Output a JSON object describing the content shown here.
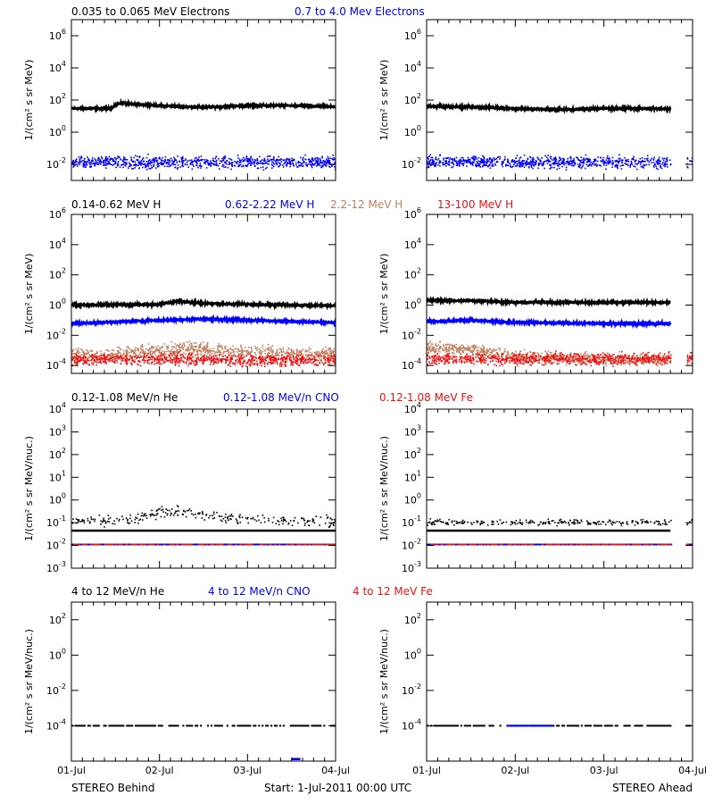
{
  "colors": {
    "black": "#000000",
    "blue": "#0000ff",
    "tan": "#c08060",
    "red": "#ee1111"
  },
  "x_ticks": [
    "01-Jul",
    "02-Jul",
    "03-Jul",
    "04-Jul"
  ],
  "footer": {
    "left": "STEREO Behind",
    "center": "Start:   1-Jul-2011 00:00 UTC",
    "right": "STEREO Ahead"
  },
  "chart_data": [
    {
      "type": "scatter",
      "id": "electrons",
      "titles": [
        {
          "text": "0.035 to 0.065 MeV Electrons",
          "color": "black"
        },
        {
          "text": "0.7 to 4.0 Mev Electrons",
          "color": "blue"
        }
      ],
      "ylabel": "1/(cm² s sr MeV)",
      "y_scale": "log",
      "ylim": [
        0.001,
        10000000
      ],
      "y_ticks": [
        {
          "base": "10",
          "exp": "-2"
        },
        {
          "base": "10",
          "exp": "0"
        },
        {
          "base": "10",
          "exp": "2"
        },
        {
          "base": "10",
          "exp": "4"
        },
        {
          "base": "10",
          "exp": "6"
        }
      ],
      "x_range_days": [
        0,
        3
      ],
      "panels": [
        {
          "name": "STEREO Behind",
          "series": [
            {
              "color": "black",
              "x": [
                0,
                0.25,
                0.45,
                0.55,
                0.7,
                1,
                1.5,
                2,
                2.5,
                3
              ],
              "y": [
                30,
                30,
                30,
                65,
                55,
                45,
                35,
                45,
                45,
                38
              ],
              "noise": 0.04,
              "style": "line"
            },
            {
              "color": "blue",
              "x": [
                0,
                1,
                2,
                3
              ],
              "y": [
                0.015,
                0.015,
                0.015,
                0.015
              ],
              "noise": 0.3,
              "style": "dots"
            }
          ]
        },
        {
          "name": "STEREO Ahead",
          "series": [
            {
              "color": "black",
              "x": [
                0,
                0.5,
                1,
                1.5,
                2,
                2.5,
                2.75
              ],
              "y": [
                40,
                38,
                30,
                25,
                30,
                30,
                28
              ],
              "noise": 0.05,
              "style": "line",
              "gap": [
                2.75,
                2.92
              ]
            },
            {
              "color": "blue",
              "x": [
                0,
                1,
                2,
                3
              ],
              "y": [
                0.015,
                0.015,
                0.015,
                0.015
              ],
              "noise": 0.3,
              "style": "dots",
              "gap": [
                2.75,
                2.92
              ]
            }
          ]
        }
      ]
    },
    {
      "type": "scatter",
      "id": "protons",
      "titles": [
        {
          "text": "0.14-0.62 MeV H",
          "color": "black"
        },
        {
          "text": "0.62-2.22 MeV H",
          "color": "blue"
        },
        {
          "text": "2.2-12 MeV H",
          "color": "tan"
        },
        {
          "text": "13-100 MeV H",
          "color": "red"
        }
      ],
      "ylabel": "1/(cm² s sr MeV)",
      "y_scale": "log",
      "ylim": [
        3e-05,
        1000000
      ],
      "y_ticks": [
        {
          "base": "10",
          "exp": "-4"
        },
        {
          "base": "10",
          "exp": "-2"
        },
        {
          "base": "10",
          "exp": "0"
        },
        {
          "base": "10",
          "exp": "2"
        },
        {
          "base": "10",
          "exp": "4"
        },
        {
          "base": "10",
          "exp": "6"
        }
      ],
      "x_range_days": [
        0,
        3
      ],
      "panels": [
        {
          "name": "STEREO Behind",
          "series": [
            {
              "color": "black",
              "x": [
                0,
                1,
                1.2,
                1.5,
                2,
                3
              ],
              "y": [
                1,
                1.1,
                1.8,
                1.3,
                1.1,
                0.9
              ],
              "noise": 0.05,
              "style": "line"
            },
            {
              "color": "blue",
              "x": [
                0,
                1,
                1.5,
                2,
                3
              ],
              "y": [
                0.06,
                0.1,
                0.12,
                0.1,
                0.07
              ],
              "noise": 0.05,
              "style": "line"
            },
            {
              "color": "tan",
              "x": [
                0,
                0.5,
                1,
                1.3,
                2,
                3
              ],
              "y": [
                0.0006,
                0.0005,
                0.0012,
                0.0015,
                0.0008,
                0.0006
              ],
              "noise": 0.35,
              "style": "dots"
            },
            {
              "color": "red",
              "x": [
                0,
                1,
                2,
                3
              ],
              "y": [
                0.00025,
                0.0003,
                0.00025,
                0.00025
              ],
              "noise": 0.3,
              "style": "dots"
            }
          ]
        },
        {
          "name": "STEREO Ahead",
          "series": [
            {
              "color": "black",
              "x": [
                0,
                0.5,
                1,
                2,
                2.75
              ],
              "y": [
                2,
                2,
                1.5,
                1.5,
                1.5
              ],
              "noise": 0.05,
              "style": "line",
              "gap": [
                2.75,
                2.92
              ]
            },
            {
              "color": "blue",
              "x": [
                0,
                0.5,
                1,
                2,
                2.75
              ],
              "y": [
                0.08,
                0.1,
                0.07,
                0.06,
                0.06
              ],
              "noise": 0.05,
              "style": "line",
              "gap": [
                2.75,
                2.92
              ]
            },
            {
              "color": "tan",
              "x": [
                0,
                0.3,
                0.7,
                1.2,
                2,
                3
              ],
              "y": [
                0.0015,
                0.0015,
                0.0008,
                0.0004,
                0.0003,
                0.0003
              ],
              "noise": 0.3,
              "style": "dots",
              "gap": [
                2.75,
                2.92
              ]
            },
            {
              "color": "red",
              "x": [
                0,
                1,
                2,
                3
              ],
              "y": [
                0.0003,
                0.0003,
                0.0003,
                0.0003
              ],
              "noise": 0.3,
              "style": "dots",
              "gap": [
                2.75,
                2.92
              ]
            }
          ]
        }
      ]
    },
    {
      "type": "scatter",
      "id": "heavy-ions-low",
      "titles": [
        {
          "text": "0.12-1.08 MeV/n He",
          "color": "black"
        },
        {
          "text": "0.12-1.08 MeV/n CNO",
          "color": "blue"
        },
        {
          "text": "0.12-1.08 MeV Fe",
          "color": "red"
        }
      ],
      "ylabel": "1/(cm² s sr MeV/nuc.)",
      "y_scale": "log",
      "ylim": [
        0.001,
        10000
      ],
      "y_ticks": [
        {
          "base": "10",
          "exp": "-3"
        },
        {
          "base": "10",
          "exp": "-2"
        },
        {
          "base": "10",
          "exp": "-1"
        },
        {
          "base": "10",
          "exp": "0"
        },
        {
          "base": "10",
          "exp": "1"
        },
        {
          "base": "10",
          "exp": "2"
        },
        {
          "base": "10",
          "exp": "3"
        },
        {
          "base": "10",
          "exp": "4"
        }
      ],
      "x_range_days": [
        0,
        3
      ],
      "panels": [
        {
          "name": "STEREO Behind",
          "series": [
            {
              "color": "black",
              "x": [
                0,
                3
              ],
              "y": [
                0.045,
                0.045
              ],
              "noise": 0,
              "style": "line"
            },
            {
              "color": "black",
              "x": [
                0,
                0.7,
                1,
                1.3,
                1.5,
                2,
                3
              ],
              "y": [
                0.12,
                0.15,
                0.3,
                0.35,
                0.2,
                0.15,
                0.12
              ],
              "noise": 0.2,
              "style": "sparse"
            },
            {
              "color": "blue",
              "x": [
                0,
                3
              ],
              "y": [
                0.011,
                0.011
              ],
              "noise": 0,
              "style": "dashed"
            },
            {
              "color": "red",
              "x": [
                0,
                3
              ],
              "y": [
                0.011,
                0.011
              ],
              "noise": 0,
              "style": "dashed-red"
            }
          ]
        },
        {
          "name": "STEREO Ahead",
          "series": [
            {
              "color": "black",
              "x": [
                0,
                2.75
              ],
              "y": [
                0.045,
                0.045
              ],
              "noise": 0,
              "style": "line",
              "gap": [
                2.75,
                2.92
              ]
            },
            {
              "color": "black",
              "x": [
                0,
                1,
                2,
                3
              ],
              "y": [
                0.11,
                0.11,
                0.11,
                0.11
              ],
              "noise": 0.1,
              "style": "sparse",
              "gap": [
                2.75,
                2.92
              ]
            },
            {
              "color": "blue",
              "x": [
                0,
                3
              ],
              "y": [
                0.011,
                0.011
              ],
              "noise": 0,
              "style": "dashed",
              "gap": [
                2.75,
                2.92
              ]
            },
            {
              "color": "red",
              "x": [
                0,
                3
              ],
              "y": [
                0.011,
                0.011
              ],
              "noise": 0,
              "style": "dashed-red",
              "gap": [
                2.75,
                2.92
              ]
            }
          ]
        }
      ]
    },
    {
      "type": "scatter",
      "id": "heavy-ions-high",
      "titles": [
        {
          "text": "4 to 12 MeV/n He",
          "color": "black"
        },
        {
          "text": "4 to 12 MeV/n CNO",
          "color": "blue"
        },
        {
          "text": "4 to 12 MeV Fe",
          "color": "red"
        }
      ],
      "ylabel": "1/(cm² s sr MeV/nuc.)",
      "y_scale": "log",
      "ylim": [
        1e-06,
        1000
      ],
      "y_ticks": [
        {
          "base": "10",
          "exp": "-4"
        },
        {
          "base": "10",
          "exp": "-2"
        },
        {
          "base": "10",
          "exp": "0"
        },
        {
          "base": "10",
          "exp": "2"
        }
      ],
      "x_range_days": [
        0,
        3
      ],
      "panels": [
        {
          "name": "STEREO Behind",
          "series": [
            {
              "color": "black",
              "x": [
                0,
                3
              ],
              "y": [
                0.0001,
                0.0001
              ],
              "noise": 0,
              "style": "dashed-sparse"
            },
            {
              "color": "blue",
              "x": [
                2.5,
                2.6
              ],
              "y": [
                1.3e-06,
                1.3e-06
              ],
              "noise": 0,
              "style": "line"
            }
          ]
        },
        {
          "name": "STEREO Ahead",
          "series": [
            {
              "color": "black",
              "x": [
                0,
                3
              ],
              "y": [
                0.0001,
                0.0001
              ],
              "noise": 0,
              "style": "dashed-sparse",
              "gap": [
                2.75,
                2.92
              ]
            },
            {
              "color": "blue",
              "x": [
                0.9,
                1.4
              ],
              "y": [
                0.0001,
                0.0001
              ],
              "noise": 0,
              "style": "dashed"
            }
          ]
        }
      ]
    }
  ]
}
